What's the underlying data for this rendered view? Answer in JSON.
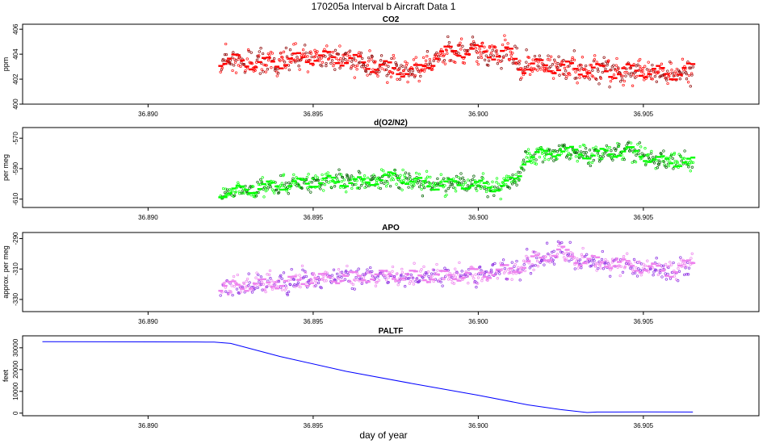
{
  "figure_title": "170205a   Interval b Aircraft Data 1",
  "colors": {
    "co2": "#ff0000",
    "o2n2": "#00ff00",
    "apo": "#ee82ee",
    "paltf": "#0000ff",
    "outline_dark": "#000000"
  },
  "chart_data": [
    {
      "type": "scatter",
      "title": "CO2",
      "ylabel": "ppm",
      "xlabel": "",
      "xlim": [
        36.8862,
        36.9085
      ],
      "ylim": [
        400,
        406.4
      ],
      "xticks": [
        36.89,
        36.895,
        36.9,
        36.905
      ],
      "xtick_labels": [
        "36.890",
        "36.895",
        "36.900",
        "36.905"
      ],
      "yticks": [
        400,
        402,
        404,
        406
      ],
      "ytick_labels": [
        "400",
        "402",
        "404",
        "406"
      ],
      "x_range": [
        36.8922,
        36.9065
      ],
      "trend": [
        [
          36.8922,
          403.6
        ],
        [
          36.8935,
          403.2
        ],
        [
          36.8943,
          403.5
        ],
        [
          36.895,
          403.8
        ],
        [
          36.896,
          403.6
        ],
        [
          36.8968,
          403.1
        ],
        [
          36.8975,
          402.8
        ],
        [
          36.8982,
          402.6
        ],
        [
          36.8988,
          404.0
        ],
        [
          36.8995,
          404.3
        ],
        [
          36.9,
          404.2
        ],
        [
          36.901,
          404.0
        ],
        [
          36.9013,
          403.0
        ],
        [
          36.902,
          403.1
        ],
        [
          36.903,
          402.8
        ],
        [
          36.904,
          402.6
        ],
        [
          36.905,
          402.7
        ],
        [
          36.9058,
          402.4
        ],
        [
          36.9065,
          402.8
        ]
      ],
      "noise": 0.9,
      "seed": 11
    },
    {
      "type": "scatter",
      "title": "d(O2/N2)",
      "ylabel": "per meg",
      "xlabel": "",
      "xlim": [
        36.8862,
        36.9085
      ],
      "ylim": [
        -615.5,
        -563
      ],
      "xticks": [
        36.89,
        36.895,
        36.9,
        36.905
      ],
      "xtick_labels": [
        "36.890",
        "36.895",
        "36.900",
        "36.905"
      ],
      "yticks": [
        -610,
        -590,
        -570
      ],
      "ytick_labels": [
        "-610",
        "-590",
        "-570"
      ],
      "x_range": [
        36.8922,
        36.9065
      ],
      "trend": [
        [
          36.8922,
          -606
        ],
        [
          36.8935,
          -602
        ],
        [
          36.8945,
          -600
        ],
        [
          36.8955,
          -598
        ],
        [
          36.8965,
          -599
        ],
        [
          36.8975,
          -595
        ],
        [
          36.8985,
          -601
        ],
        [
          36.8995,
          -600
        ],
        [
          36.9005,
          -602
        ],
        [
          36.9012,
          -598
        ],
        [
          36.9014,
          -583
        ],
        [
          36.9025,
          -578
        ],
        [
          36.9035,
          -581
        ],
        [
          36.9045,
          -578
        ],
        [
          36.9055,
          -585
        ],
        [
          36.9065,
          -586
        ]
      ],
      "noise": 5.5,
      "seed": 23
    },
    {
      "type": "scatter",
      "title": "APO",
      "ylabel": "approx. per meg",
      "xlabel": "",
      "xlim": [
        36.8862,
        36.9085
      ],
      "ylim": [
        -338,
        -286
      ],
      "xticks": [
        36.89,
        36.895,
        36.9,
        36.905
      ],
      "xtick_labels": [
        "36.890",
        "36.895",
        "36.900",
        "36.905"
      ],
      "yticks": [
        -330,
        -310,
        -290
      ],
      "ytick_labels": [
        "-330",
        "-310",
        "-290"
      ],
      "x_range": [
        36.8922,
        36.9065
      ],
      "trend": [
        [
          36.8922,
          -322
        ],
        [
          36.8935,
          -320
        ],
        [
          36.8945,
          -318
        ],
        [
          36.8955,
          -316
        ],
        [
          36.8965,
          -315
        ],
        [
          36.8975,
          -314
        ],
        [
          36.8985,
          -315
        ],
        [
          36.8995,
          -314
        ],
        [
          36.9005,
          -312
        ],
        [
          36.9012,
          -309
        ],
        [
          36.902,
          -302
        ],
        [
          36.9025,
          -298
        ],
        [
          36.903,
          -304
        ],
        [
          36.904,
          -306
        ],
        [
          36.905,
          -309
        ],
        [
          36.9058,
          -312
        ],
        [
          36.9065,
          -306
        ]
      ],
      "noise": 6,
      "seed": 37
    },
    {
      "type": "line",
      "title": "PALTF",
      "ylabel": "feet",
      "xlabel": "day of year",
      "xlim": [
        36.8862,
        36.9085
      ],
      "ylim": [
        -1200,
        35500
      ],
      "xticks": [
        36.89,
        36.895,
        36.9,
        36.905
      ],
      "xtick_labels": [
        "36.890",
        "36.895",
        "36.900",
        "36.905"
      ],
      "yticks": [
        0,
        10000,
        20000,
        30000
      ],
      "ytick_labels": [
        "0",
        "10000",
        "20000",
        "30000"
      ],
      "x": [
        36.8868,
        36.8915,
        36.892,
        36.8925,
        36.894,
        36.896,
        36.898,
        36.9,
        36.9015,
        36.9025,
        36.9033,
        36.9036,
        36.905,
        36.9065
      ],
      "y": [
        32800,
        32700,
        32600,
        32000,
        26000,
        19200,
        13600,
        8200,
        3800,
        1600,
        300,
        500,
        550,
        500
      ]
    }
  ]
}
